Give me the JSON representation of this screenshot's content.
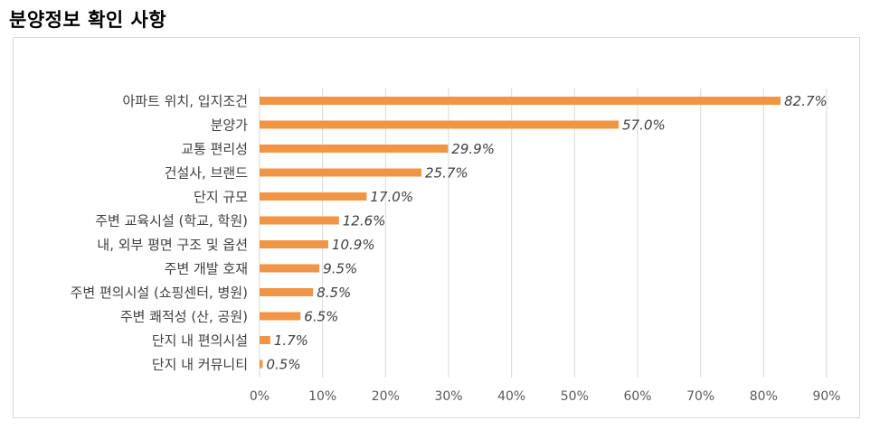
{
  "title": "분양정보 확인 사항",
  "chart_data": {
    "type": "bar",
    "orientation": "horizontal",
    "categories": [
      "아파트 위치, 입지조건",
      "분양가",
      "교통 편리성",
      "건설사, 브랜드",
      "단지 규모",
      "주변 교육시설 (학교, 학원)",
      "내, 외부 평면 구조 및 옵션",
      "주변 개발 호재",
      "주변 편의시설 (쇼핑센터, 병원)",
      "주변 쾌적성 (산, 공원)",
      "단지 내 편의시설",
      "단지 내 커뮤니티"
    ],
    "values": [
      82.7,
      57.0,
      29.9,
      25.7,
      17.0,
      12.6,
      10.9,
      9.5,
      8.5,
      6.5,
      1.7,
      0.5
    ],
    "value_labels": [
      "82.7%",
      "57.0%",
      "29.9%",
      "25.7%",
      "17.0%",
      "12.6%",
      "10.9%",
      "9.5%",
      "8.5%",
      "6.5%",
      "1.7%",
      "0.5%"
    ],
    "xlim": [
      0,
      90
    ],
    "ticks": [
      0,
      10,
      20,
      30,
      40,
      50,
      60,
      70,
      80,
      90
    ],
    "tick_labels": [
      "0%",
      "10%",
      "20%",
      "30%",
      "40%",
      "50%",
      "60%",
      "70%",
      "80%",
      "90%"
    ],
    "grid": "vertical",
    "colors": {
      "bar": "#F09446",
      "grid": "#d9d9d9",
      "text": "#404040"
    }
  }
}
